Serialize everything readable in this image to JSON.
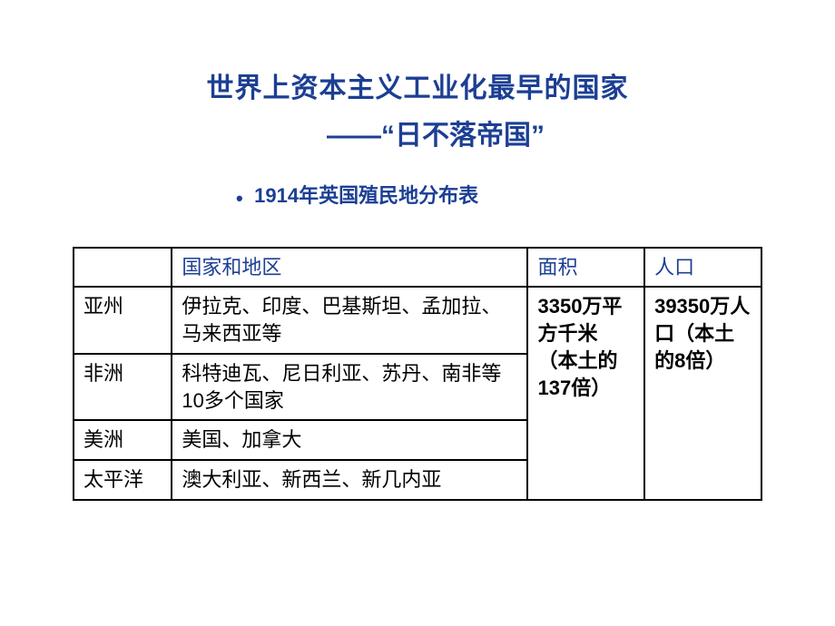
{
  "colors": {
    "title_color": "#1c3f94",
    "subtitle_color": "#1c3f94",
    "header_text_color": "#1c3f94",
    "body_text_color": "#000000",
    "border_color": "#000000",
    "background": "#ffffff"
  },
  "title": {
    "line1": "世界上资本主义工业化最早的国家",
    "line2": "——“日不落帝国”"
  },
  "subtitle": {
    "bullet": "•",
    "text": "1914年英国殖民地分布表"
  },
  "table": {
    "headers": {
      "region": "",
      "countries": "国家和地区",
      "area": "面积",
      "population": "人口"
    },
    "rows": [
      {
        "region": "亚州",
        "countries": "伊拉克、印度、巴基斯坦、孟加拉、马来西亚等"
      },
      {
        "region": "非洲",
        "countries": "科特迪瓦、尼日利亚、苏丹、南非等10多个国家"
      },
      {
        "region": "美洲",
        "countries": "美国、加拿大"
      },
      {
        "region": "太平洋",
        "countries": "澳大利亚、新西兰、新几内亚"
      }
    ],
    "area_merged": "3350万平方千米（本土的137倍）",
    "population_merged": "39350万人口（本土的8倍）"
  }
}
